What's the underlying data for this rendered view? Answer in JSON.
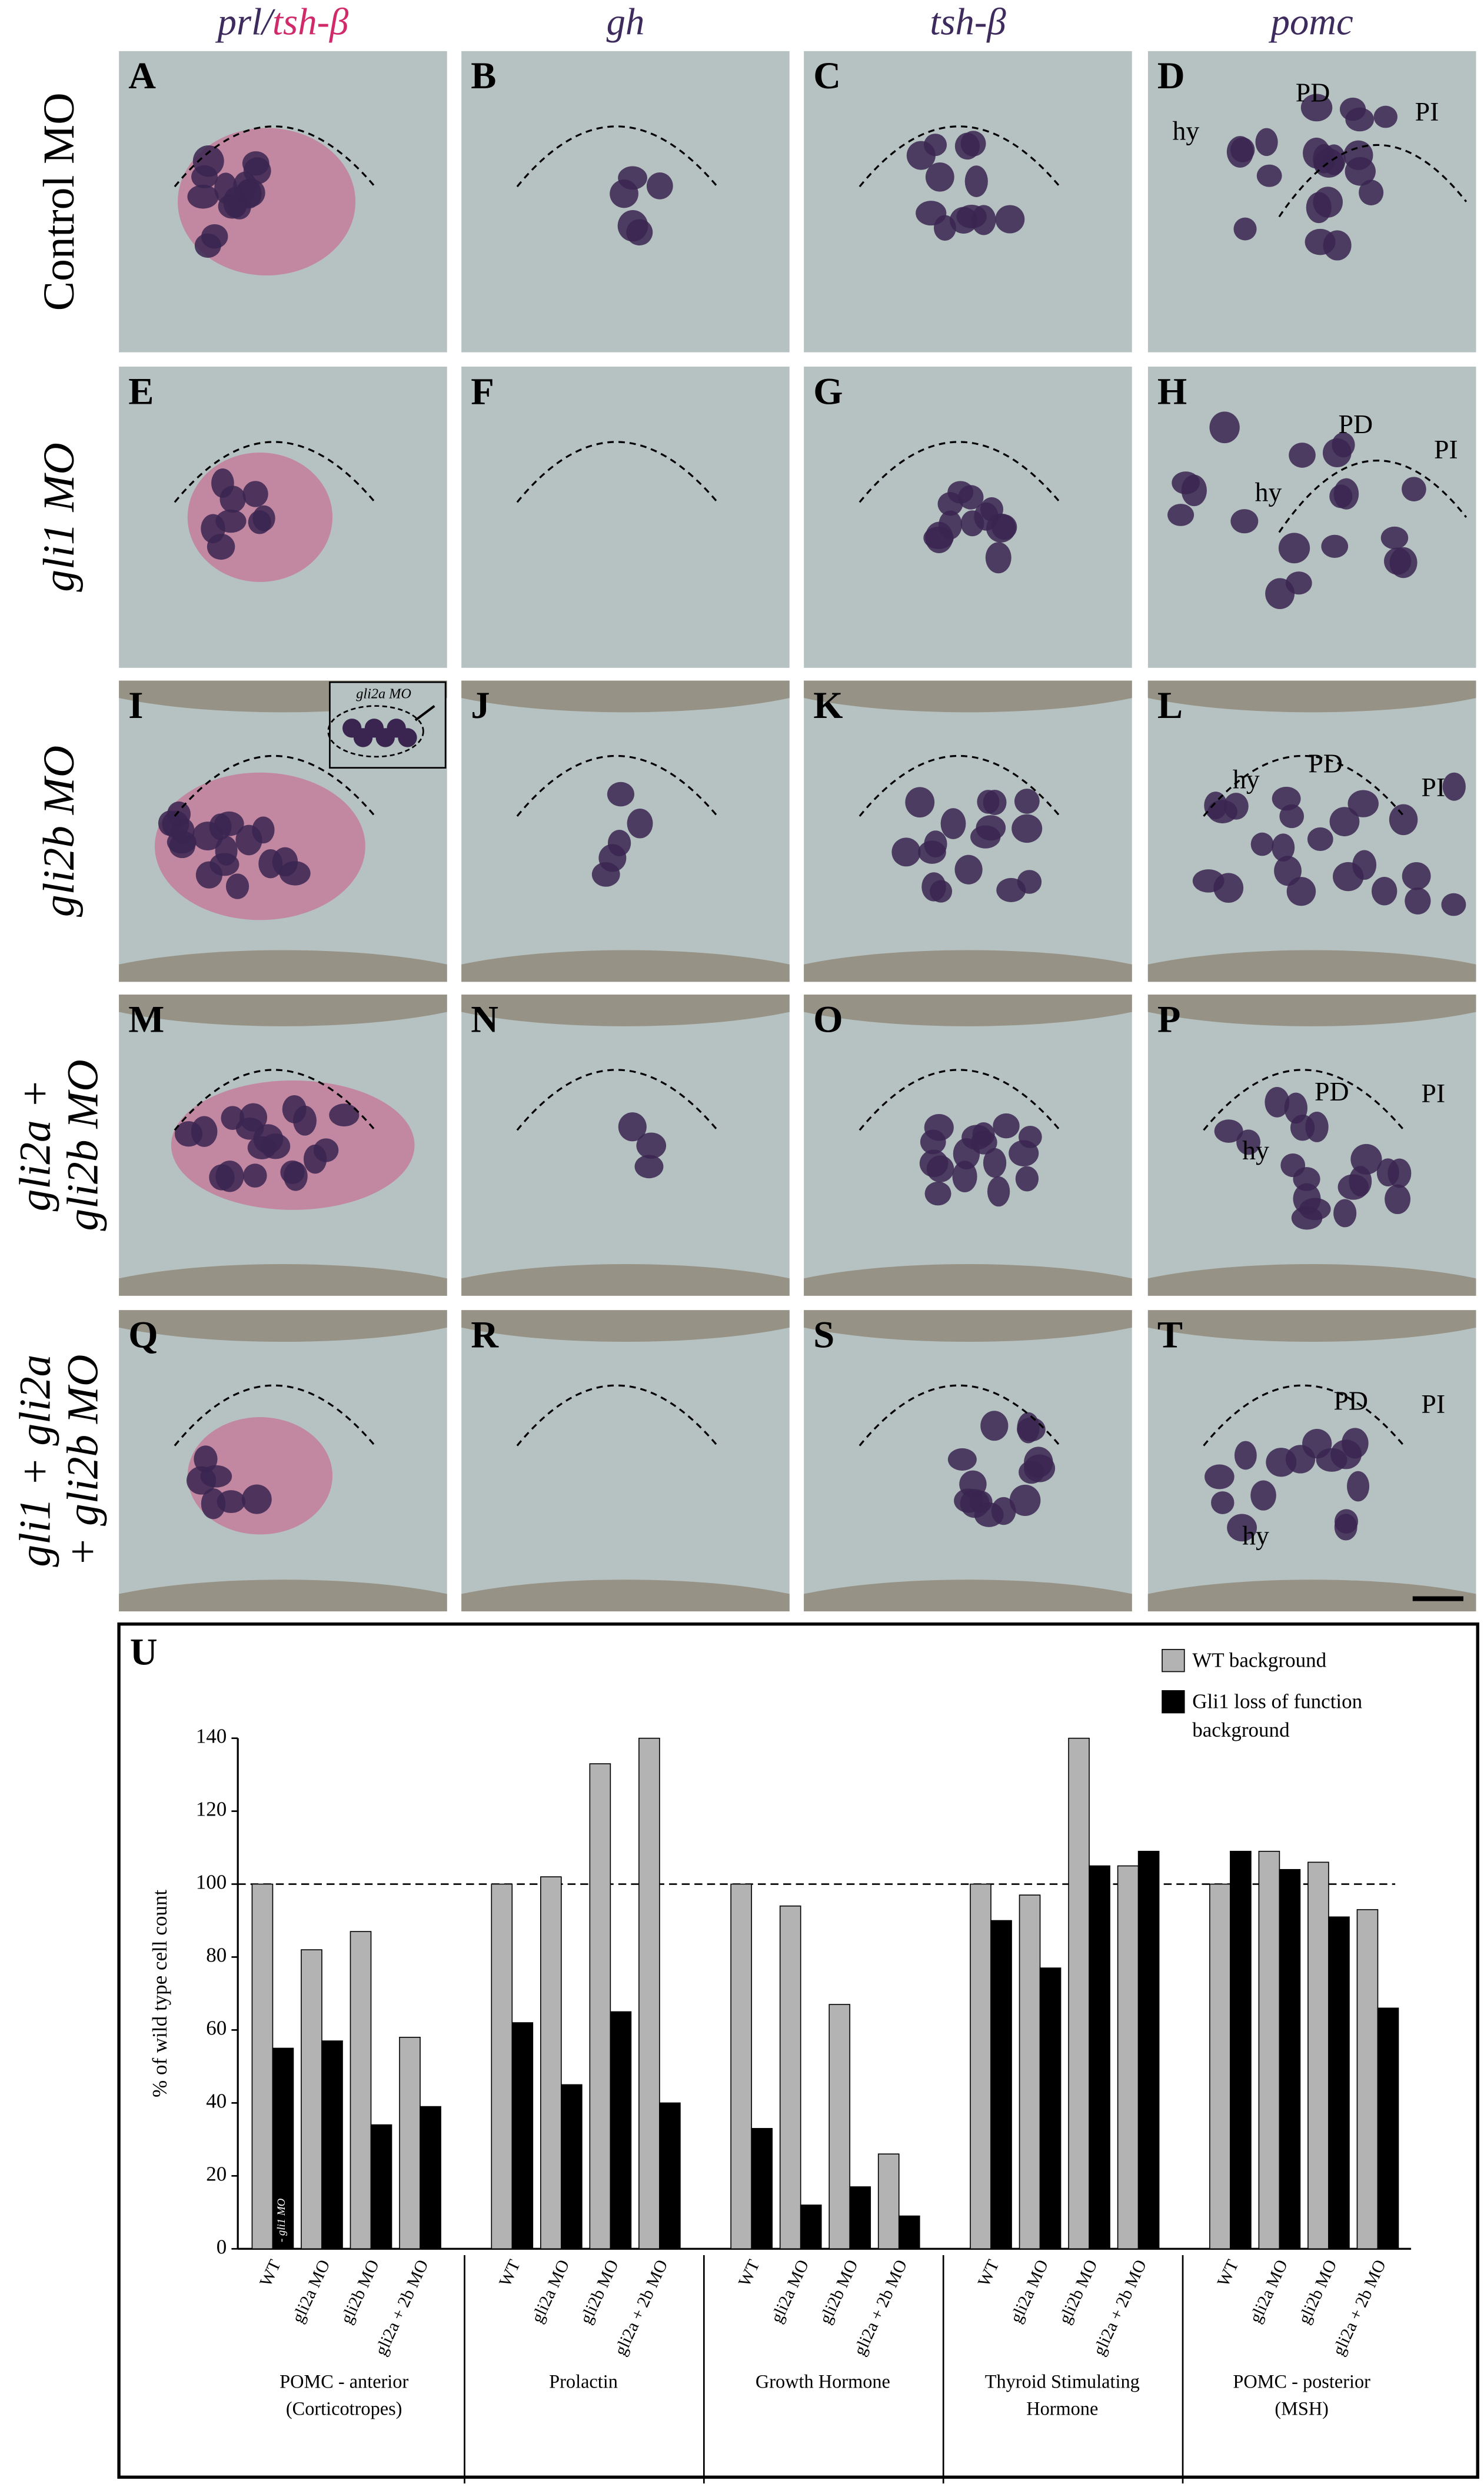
{
  "column_headers": [
    [
      "prl/",
      "tsh-β"
    ],
    [
      "gh"
    ],
    [
      "tsh-β"
    ],
    [
      "pomc"
    ]
  ],
  "row_labels": [
    [
      "Control MO"
    ],
    [
      "gli1 MO"
    ],
    [
      "gli2b MO"
    ],
    [
      "gli2a +",
      "gli2b MO"
    ],
    [
      "gli1 + gli2a",
      "+ gli2b MO"
    ]
  ],
  "panels": [
    {
      "letter": "A"
    },
    {
      "letter": "B"
    },
    {
      "letter": "C"
    },
    {
      "letter": "D",
      "labels": [
        "hy",
        "PD",
        "PI"
      ]
    },
    {
      "letter": "E"
    },
    {
      "letter": "F"
    },
    {
      "letter": "G"
    },
    {
      "letter": "H",
      "labels": [
        "hy",
        "PD",
        "PI"
      ]
    },
    {
      "letter": "I",
      "inset": "gli2a MO"
    },
    {
      "letter": "J"
    },
    {
      "letter": "K"
    },
    {
      "letter": "L",
      "labels": [
        "hy",
        "PD",
        "PI"
      ]
    },
    {
      "letter": "M"
    },
    {
      "letter": "N"
    },
    {
      "letter": "O"
    },
    {
      "letter": "P",
      "labels": [
        "PD",
        "PI",
        "hy"
      ]
    },
    {
      "letter": "Q"
    },
    {
      "letter": "R"
    },
    {
      "letter": "S"
    },
    {
      "letter": "T",
      "labels": [
        "PD",
        "PI",
        "hy"
      ]
    }
  ],
  "chart_data": {
    "type": "bar",
    "panel_label": "U",
    "ylabel": "% of wild type cell count",
    "ylim": [
      0,
      140
    ],
    "yticks": [
      0,
      20,
      40,
      60,
      80,
      100,
      120,
      140
    ],
    "reference_line": 100,
    "annotation": "- gli1 MO",
    "series": [
      {
        "name": "WT background",
        "color": "#b3b3b3"
      },
      {
        "name": "Gli1 loss of function background",
        "color": "#000000"
      }
    ],
    "groups": [
      {
        "label": [
          "POMC - anterior",
          "(Corticotropes)"
        ],
        "categories": [
          "WT",
          "gli2a MO",
          "gli2b MO",
          "gli2a + 2b MO"
        ],
        "values": [
          [
            100,
            55
          ],
          [
            82,
            57
          ],
          [
            87,
            34
          ],
          [
            58,
            39
          ]
        ]
      },
      {
        "label": [
          "Prolactin"
        ],
        "categories": [
          "WT",
          "gli2a MO",
          "gli2b MO",
          "gli2a + 2b MO"
        ],
        "values": [
          [
            100,
            62
          ],
          [
            102,
            45
          ],
          [
            133,
            65
          ],
          [
            140,
            40
          ]
        ]
      },
      {
        "label": [
          "Growth Hormone"
        ],
        "categories": [
          "WT",
          "gli2a MO",
          "gli2b MO",
          "gli2a + 2b MO"
        ],
        "values": [
          [
            100,
            33
          ],
          [
            94,
            12
          ],
          [
            67,
            17
          ],
          [
            26,
            9
          ]
        ]
      },
      {
        "label": [
          "Thyroid Stimulating",
          "Hormone"
        ],
        "categories": [
          "WT",
          "gli2a MO",
          "gli2b MO",
          "gli2a + 2b MO"
        ],
        "values": [
          [
            100,
            90
          ],
          [
            97,
            77
          ],
          [
            140,
            105
          ],
          [
            105,
            109
          ]
        ]
      },
      {
        "label": [
          "POMC - posterior",
          "(MSH)"
        ],
        "categories": [
          "WT",
          "gli2a MO",
          "gli2b MO",
          "gli2a + 2b MO"
        ],
        "values": [
          [
            100,
            109
          ],
          [
            109,
            104
          ],
          [
            106,
            91
          ],
          [
            93,
            66
          ]
        ]
      }
    ]
  }
}
